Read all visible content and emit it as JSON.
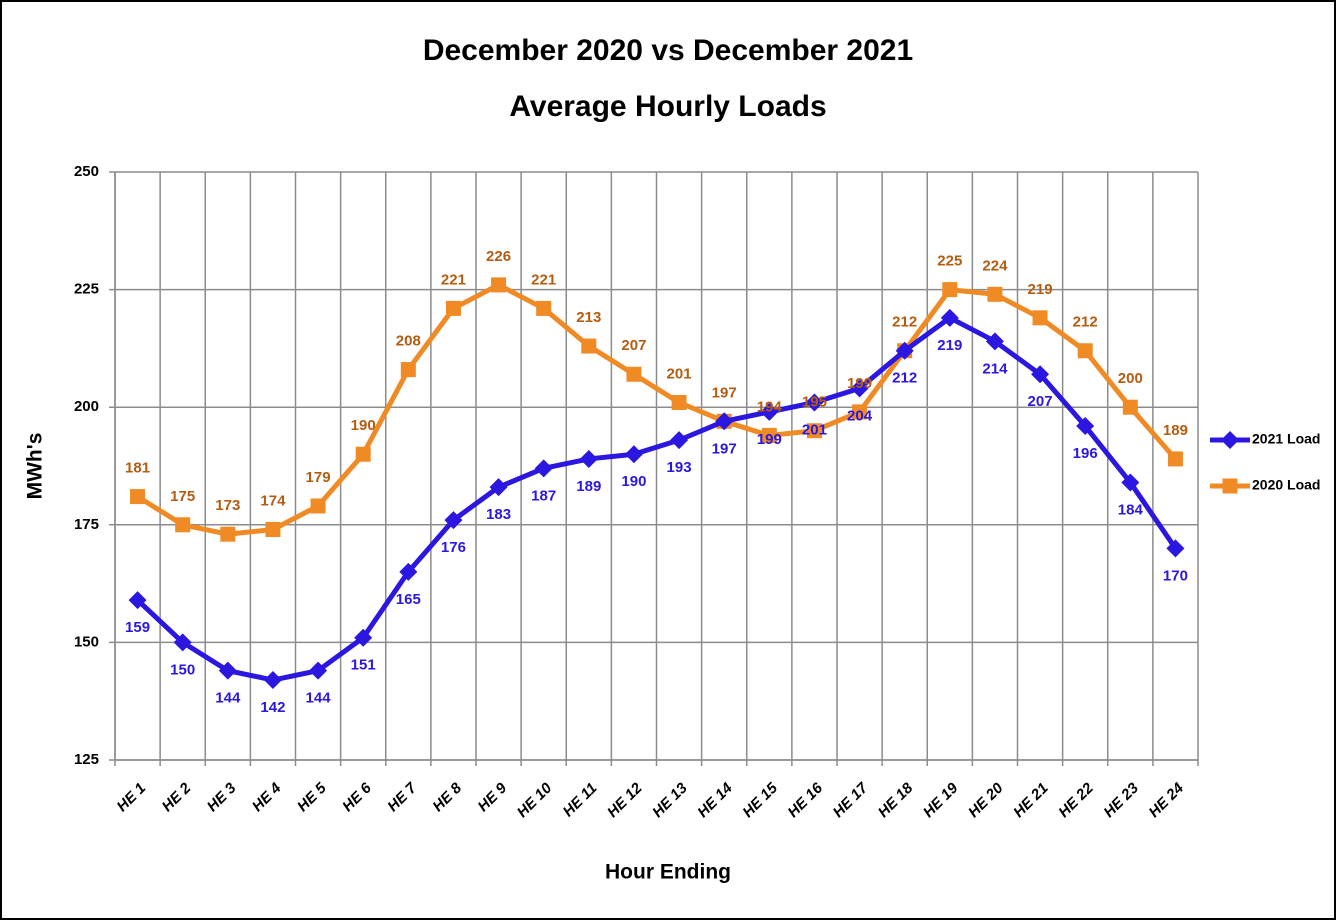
{
  "chart_data": {
    "type": "line",
    "title": "December 2020 vs December 2021",
    "subtitle": "Average Hourly Loads",
    "y_label": "MWh's",
    "x_label": "Hour Ending",
    "categories": [
      "HE 1",
      "HE 2",
      "HE 3",
      "HE 4",
      "HE 5",
      "HE 6",
      "HE 7",
      "HE 8",
      "HE 9",
      "HE 10",
      "HE 11",
      "HE 12",
      "HE 13",
      "HE 14",
      "HE 15",
      "HE 16",
      "HE 17",
      "HE 18",
      "HE 19",
      "HE 20",
      "HE 21",
      "HE 22",
      "HE 23",
      "HE 24"
    ],
    "series": [
      {
        "name": "2021 Load",
        "color": "#2b17e0",
        "label_color": "#2b17e0",
        "marker": "diamond",
        "label_position": "below",
        "values": [
          159,
          150,
          144,
          142,
          144,
          151,
          165,
          176,
          183,
          187,
          189,
          190,
          193,
          197,
          199,
          201,
          204,
          212,
          219,
          214,
          207,
          196,
          184,
          170
        ]
      },
      {
        "name": "2020 Load",
        "color": "#f08a24",
        "label_color": "#b35c12",
        "marker": "square",
        "label_position": "above",
        "values": [
          181,
          175,
          173,
          174,
          179,
          190,
          208,
          221,
          226,
          221,
          213,
          207,
          201,
          197,
          194,
          195,
          199,
          212,
          225,
          224,
          219,
          212,
          200,
          189
        ]
      }
    ],
    "ylim": [
      125,
      250
    ],
    "yticks": [
      125,
      150,
      175,
      200,
      225,
      250
    ],
    "grid": true,
    "legend": "right"
  }
}
